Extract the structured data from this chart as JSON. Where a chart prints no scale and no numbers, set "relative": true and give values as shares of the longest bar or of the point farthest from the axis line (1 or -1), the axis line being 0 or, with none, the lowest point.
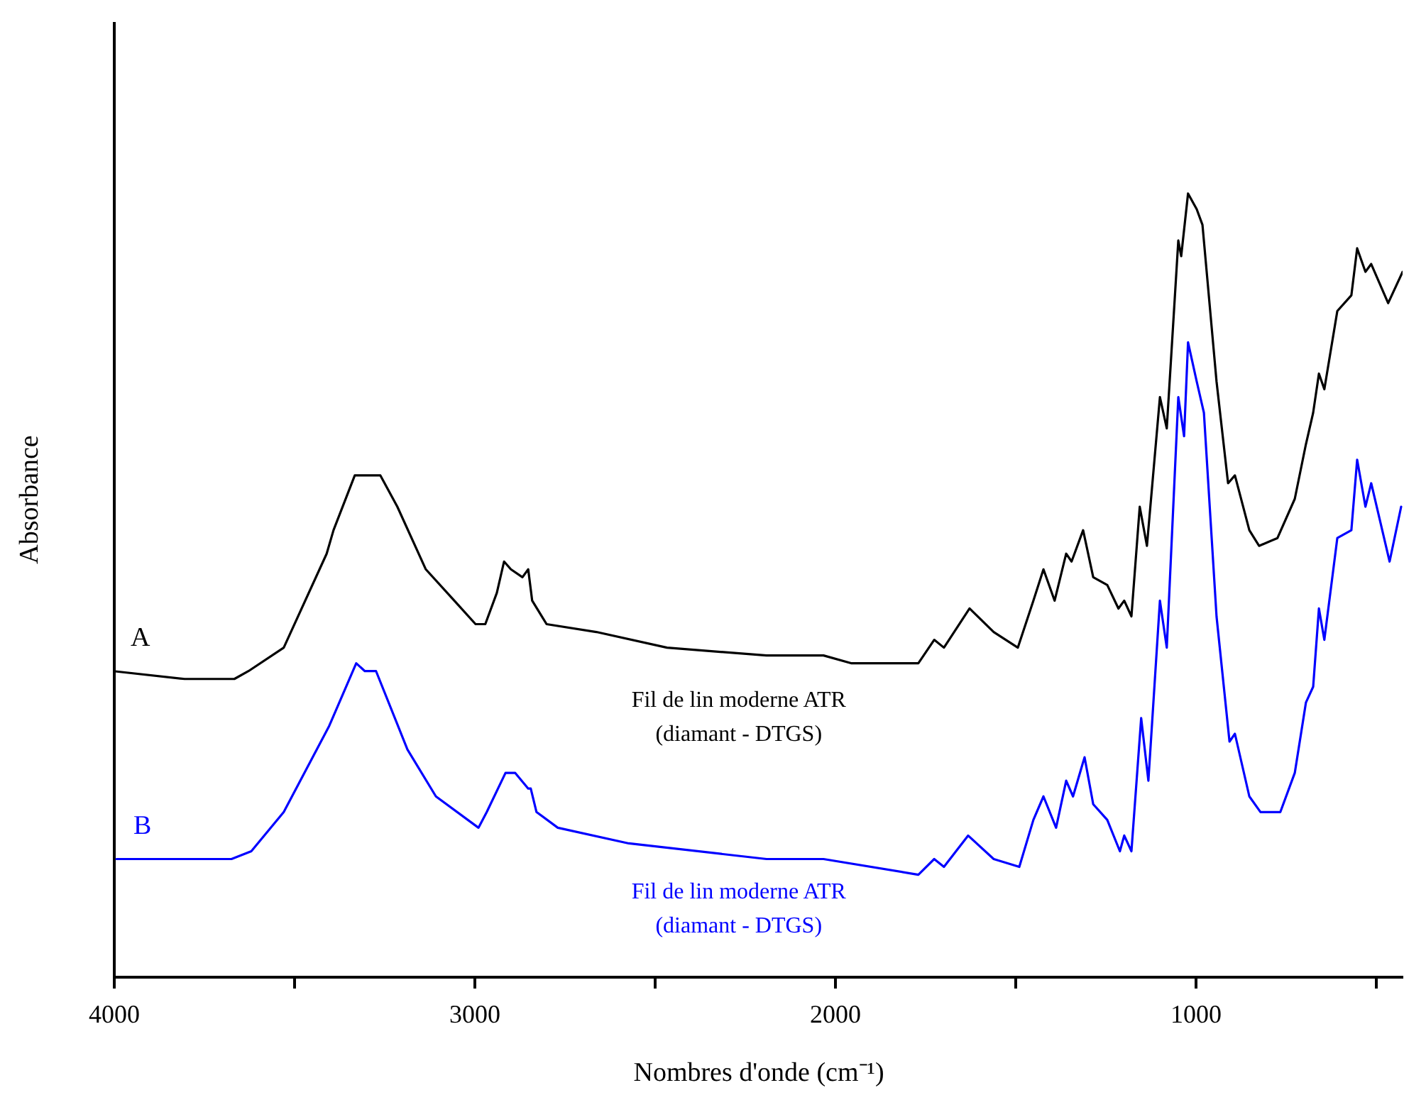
{
  "chart_data": {
    "type": "line",
    "relative": true,
    "xlabel": "Nombres d'onde (cm⁻¹)",
    "ylabel": "Absorbance",
    "xlim": [
      4000,
      425
    ],
    "xticks": [
      4000,
      {
        "value": 3500,
        "label": null
      },
      3000,
      {
        "value": 2500,
        "label": null
      },
      2000,
      {
        "value": 1500,
        "label": null
      },
      1000,
      {
        "value": 500,
        "label": null
      }
    ],
    "marker": "none",
    "line_style": "solid",
    "annotations": [
      "Fil de lin moderne ATR\n(diamant - DTGS)",
      "Fil de lin moderne ATR\n(diamant - DTGS)"
    ],
    "series": [
      {
        "name": "A",
        "color": "#000000",
        "x": [
          4000,
          3803,
          3665,
          3626,
          3528,
          3409,
          3390,
          3331,
          3291,
          3260,
          3213,
          3134,
          3055,
          2996,
          2969,
          2937,
          2917,
          2898,
          2866,
          2850,
          2839,
          2799,
          2661,
          2465,
          2189,
          2031,
          1953,
          1768,
          1724,
          1697,
          1626,
          1559,
          1492,
          1449,
          1421,
          1390,
          1358,
          1343,
          1311,
          1283,
          1244,
          1213,
          1197,
          1177,
          1154,
          1134,
          1098,
          1079,
          1047,
          1039,
          1020,
          996,
          980,
          941,
          909,
          890,
          850,
          823,
          772,
          724,
          693,
          673,
          657,
          642,
          606,
          567,
          551,
          528,
          512,
          465,
          425
        ],
        "values": [
          0.39,
          0.38,
          0.38,
          0.39,
          0.42,
          0.54,
          0.57,
          0.64,
          0.64,
          0.64,
          0.6,
          0.52,
          0.48,
          0.45,
          0.45,
          0.49,
          0.53,
          0.52,
          0.51,
          0.52,
          0.48,
          0.45,
          0.44,
          0.42,
          0.41,
          0.41,
          0.4,
          0.4,
          0.43,
          0.42,
          0.47,
          0.44,
          0.42,
          0.48,
          0.52,
          0.48,
          0.54,
          0.53,
          0.57,
          0.51,
          0.5,
          0.47,
          0.48,
          0.46,
          0.6,
          0.55,
          0.74,
          0.7,
          0.94,
          0.92,
          1.0,
          0.98,
          0.96,
          0.76,
          0.63,
          0.64,
          0.57,
          0.55,
          0.56,
          0.61,
          0.68,
          0.72,
          0.77,
          0.75,
          0.85,
          0.87,
          0.93,
          0.9,
          0.91,
          0.86,
          0.9
        ]
      },
      {
        "name": "B",
        "color": "#0000ff",
        "x": [
          3992,
          3673,
          3618,
          3528,
          3402,
          3327,
          3303,
          3272,
          3185,
          3106,
          2988,
          2965,
          2913,
          2886,
          2850,
          2843,
          2827,
          2768,
          2571,
          2189,
          2031,
          1768,
          1724,
          1697,
          1630,
          1559,
          1488,
          1449,
          1421,
          1386,
          1358,
          1339,
          1307,
          1283,
          1244,
          1209,
          1197,
          1177,
          1150,
          1130,
          1098,
          1079,
          1047,
          1031,
          1020,
          996,
          976,
          941,
          905,
          890,
          850,
          819,
          764,
          724,
          693,
          673,
          657,
          642,
          606,
          567,
          551,
          528,
          512,
          461,
          429
        ],
        "values": [
          0.15,
          0.15,
          0.16,
          0.21,
          0.32,
          0.4,
          0.39,
          0.39,
          0.29,
          0.23,
          0.19,
          0.21,
          0.26,
          0.26,
          0.24,
          0.24,
          0.21,
          0.19,
          0.17,
          0.15,
          0.15,
          0.13,
          0.15,
          0.14,
          0.18,
          0.15,
          0.14,
          0.2,
          0.23,
          0.19,
          0.25,
          0.23,
          0.28,
          0.22,
          0.2,
          0.16,
          0.18,
          0.16,
          0.33,
          0.25,
          0.48,
          0.42,
          0.74,
          0.69,
          0.81,
          0.76,
          0.72,
          0.46,
          0.3,
          0.31,
          0.23,
          0.21,
          0.21,
          0.26,
          0.35,
          0.37,
          0.47,
          0.43,
          0.56,
          0.57,
          0.66,
          0.6,
          0.63,
          0.53,
          0.6
        ]
      }
    ]
  }
}
